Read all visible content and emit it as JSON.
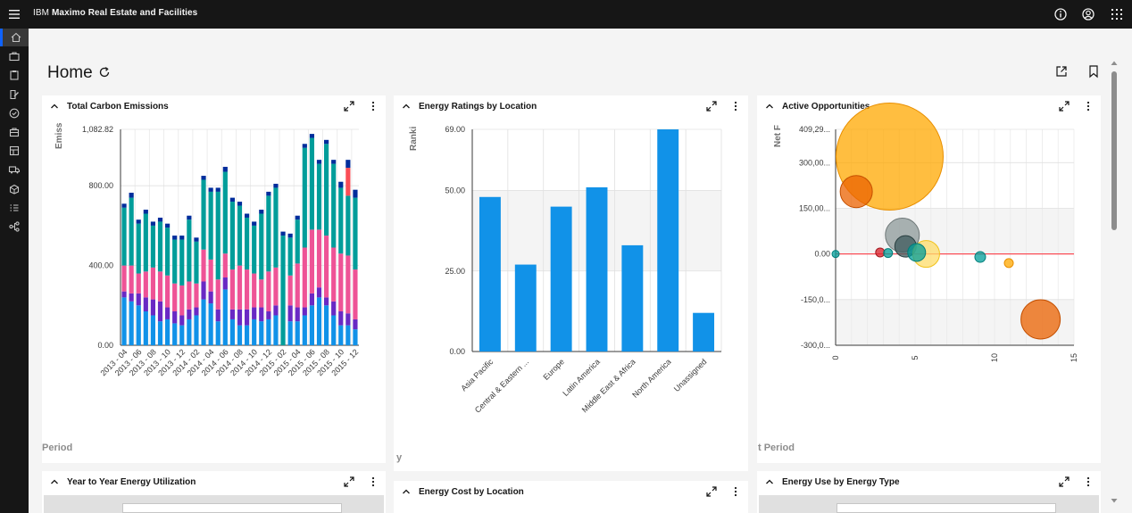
{
  "app": {
    "title_prefix": "IBM",
    "title_name": "Maximo Real Estate and Facilities"
  },
  "icons": {
    "menu": "hamburger-menu-icon",
    "info": "info-icon",
    "user": "user-avatar-icon",
    "apps": "app-switcher-icon"
  },
  "sidenav": [
    {
      "name": "home-icon",
      "active": true
    },
    {
      "name": "briefcase-icon"
    },
    {
      "name": "clipboard-icon"
    },
    {
      "name": "edit-document-icon"
    },
    {
      "name": "checkmark-circle-icon"
    },
    {
      "name": "building-icon"
    },
    {
      "name": "floorplan-icon"
    },
    {
      "name": "delivery-truck-icon"
    },
    {
      "name": "package-icon"
    },
    {
      "name": "task-list-icon"
    },
    {
      "name": "flow-connection-icon"
    }
  ],
  "page": {
    "title": "Home"
  },
  "cards": {
    "carbon": {
      "title": "Total Carbon Emissions",
      "y_axis_label": "Emiss",
      "faded_text": "Period"
    },
    "ratings": {
      "title": "Energy Ratings by Location",
      "y_axis_label": "Ranki",
      "faded_text": "y"
    },
    "opportunities": {
      "title": "Active Opportunities",
      "y_axis_label": "Net F",
      "faded_text": "t Period"
    },
    "yoy": {
      "title": "Year to Year Energy Utilization"
    },
    "cost": {
      "title": "Energy Cost by Location"
    },
    "usetype": {
      "title": "Energy Use by Energy Type"
    }
  },
  "colors": {
    "blue": "#1192e8",
    "purple": "#6929c4",
    "pink": "#ee5396",
    "teal": "#009d9a",
    "navy": "#002d9c",
    "red": "#fa4d56",
    "orange": "#ff9f0a",
    "dark_orange": "#eb6200"
  },
  "chart_data": [
    {
      "type": "bar",
      "title": "Total Carbon Emissions",
      "ylabel": "Emiss",
      "ylim": [
        0,
        1082.82
      ],
      "y_ticks": [
        "1,082.82",
        "800.00",
        "400.00",
        "0.00"
      ],
      "y_tick_values": [
        1082.82,
        800,
        400,
        0
      ],
      "x_tick_labels": [
        "2013 - 04",
        "2013 - 06",
        "2013 - 08",
        "2013 - 10",
        "2013 - 12",
        "2014 - 02",
        "2014 - 04",
        "2014 - 06",
        "2014 - 08",
        "2014 - 10",
        "2014 - 12",
        "2015 - 02",
        "2015 - 04",
        "2015 - 06",
        "2015 - 08",
        "2015 - 10",
        "2015 - 12"
      ],
      "stacked": true,
      "series_order": [
        "blue",
        "purple",
        "pink",
        "teal",
        "red",
        "navy"
      ],
      "months": 33,
      "series": [
        {
          "color": "blue",
          "values": [
            240,
            220,
            200,
            170,
            150,
            120,
            130,
            110,
            100,
            130,
            150,
            230,
            210,
            120,
            280,
            130,
            100,
            100,
            130,
            120,
            130,
            150,
            0,
            120,
            120,
            150,
            200,
            240,
            200,
            150,
            100,
            100,
            80
          ]
        },
        {
          "color": "purple",
          "values": [
            30,
            40,
            60,
            70,
            80,
            100,
            60,
            60,
            50,
            50,
            40,
            90,
            60,
            60,
            60,
            50,
            80,
            80,
            60,
            70,
            40,
            50,
            0,
            80,
            70,
            40,
            60,
            50,
            40,
            70,
            70,
            60,
            50
          ]
        },
        {
          "color": "pink",
          "values": [
            130,
            140,
            100,
            130,
            160,
            150,
            160,
            140,
            150,
            140,
            120,
            160,
            160,
            150,
            120,
            200,
            220,
            200,
            170,
            140,
            200,
            190,
            0,
            150,
            220,
            300,
            320,
            290,
            310,
            270,
            290,
            290,
            250
          ]
        },
        {
          "color": "teal",
          "values": [
            290,
            340,
            250,
            290,
            210,
            250,
            240,
            220,
            230,
            310,
            210,
            350,
            340,
            440,
            410,
            340,
            300,
            260,
            240,
            330,
            380,
            400,
            550,
            190,
            220,
            500,
            460,
            330,
            460,
            420,
            330,
            300,
            360
          ]
        },
        {
          "color": "red",
          "values": [
            0,
            0,
            0,
            0,
            0,
            0,
            0,
            0,
            0,
            0,
            0,
            0,
            0,
            0,
            0,
            0,
            0,
            0,
            0,
            0,
            0,
            0,
            0,
            0,
            0,
            0,
            0,
            0,
            0,
            0,
            0,
            140,
            0
          ]
        },
        {
          "color": "navy",
          "values": [
            20,
            25,
            20,
            20,
            20,
            20,
            20,
            20,
            20,
            20,
            20,
            20,
            20,
            20,
            25,
            20,
            20,
            20,
            20,
            20,
            20,
            20,
            20,
            20,
            20,
            20,
            20,
            20,
            20,
            20,
            30,
            40,
            40
          ]
        }
      ]
    },
    {
      "type": "bar",
      "title": "Energy Ratings by Location",
      "ylabel": "Ranki",
      "ylim": [
        0,
        69
      ],
      "y_ticks": [
        "69.00",
        "50.00",
        "25.00",
        "0.00"
      ],
      "y_tick_values": [
        69,
        50,
        25,
        0
      ],
      "categories": [
        "Asia Pacific",
        "Central & Eastern ...",
        "Europe",
        "Latin America",
        "Middle East & Africa",
        "North America",
        "Unassigned"
      ],
      "values": [
        48,
        27,
        45,
        51,
        33,
        69,
        12
      ]
    },
    {
      "type": "scatter",
      "title": "Active Opportunities",
      "ylabel": "Net F",
      "xlim": [
        0,
        15
      ],
      "ylim": [
        -300,
        409.29
      ],
      "x_ticks": [
        "0",
        "5",
        "10",
        "15"
      ],
      "x_tick_values": [
        0,
        5,
        10,
        15
      ],
      "y_ticks": [
        "409,29...",
        "300,00...",
        "150,00...",
        "0.00",
        "-150,0...",
        "-300,0..."
      ],
      "y_tick_values": [
        409.29,
        300,
        150,
        0,
        -150,
        -300
      ],
      "reference_line": 0,
      "points": [
        {
          "x": 3.4,
          "y": 320,
          "size": 60,
          "color": "orange"
        },
        {
          "x": 1.3,
          "y": 205,
          "size": 18,
          "color": "dark_orange"
        },
        {
          "x": 4.2,
          "y": 62,
          "size": 19,
          "color": "gray"
        },
        {
          "x": 4.4,
          "y": 25,
          "size": 12,
          "color": "slate"
        },
        {
          "x": 5.7,
          "y": 0,
          "size": 15,
          "color": "yellow"
        },
        {
          "x": 5.1,
          "y": 5,
          "size": 10,
          "color": "teal"
        },
        {
          "x": 2.8,
          "y": 5,
          "size": 5,
          "color": "red"
        },
        {
          "x": 3.3,
          "y": 3,
          "size": 5,
          "color": "teal"
        },
        {
          "x": 0,
          "y": 0,
          "size": 4,
          "color": "teal"
        },
        {
          "x": 9.1,
          "y": -10,
          "size": 6,
          "color": "teal"
        },
        {
          "x": 10.9,
          "y": -30,
          "size": 5,
          "color": "orange"
        },
        {
          "x": 12.9,
          "y": -215,
          "size": 22,
          "color": "dark_orange"
        }
      ]
    }
  ]
}
